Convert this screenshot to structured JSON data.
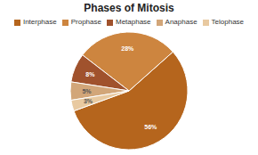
{
  "chart_data": {
    "type": "pie",
    "title": "Phases of Mitosis",
    "categories": [
      "Interphase",
      "Prophase",
      "Metaphase",
      "Anaphase",
      "Telophase"
    ],
    "values": [
      56,
      28,
      8,
      5,
      3
    ],
    "value_labels": [
      "56%",
      "28%",
      "8%",
      "5%",
      "3%"
    ],
    "colors": [
      "#B5651D",
      "#CD853F",
      "#A0522D",
      "#D2A679",
      "#E8C9A0"
    ],
    "data_labels": true,
    "legend": "top"
  }
}
